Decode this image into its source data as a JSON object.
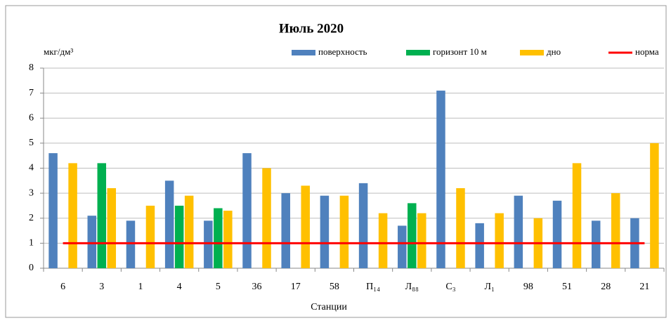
{
  "chart_data": {
    "type": "bar",
    "title": "Июль 2020",
    "y_label": "мкг/дм³",
    "x_label": "Станции",
    "categories": [
      "6",
      "3",
      "1",
      "4",
      "5",
      "36",
      "17",
      "58",
      "П₁₄",
      "Л₈₈",
      "С₃",
      "Л₁",
      "98",
      "51",
      "28",
      "21"
    ],
    "series": [
      {
        "name": "поверхность",
        "color": "#4f81bd",
        "type": "bar",
        "values": [
          4.6,
          2.1,
          1.9,
          3.5,
          1.9,
          4.6,
          3.0,
          2.9,
          3.4,
          1.7,
          7.1,
          1.8,
          2.9,
          2.7,
          1.9,
          2.0
        ]
      },
      {
        "name": "горизонт 10 м",
        "color": "#00b050",
        "type": "bar",
        "values": [
          null,
          4.2,
          null,
          2.5,
          2.4,
          null,
          null,
          null,
          null,
          2.6,
          null,
          null,
          null,
          null,
          null,
          null
        ]
      },
      {
        "name": "дно",
        "color": "#ffc000",
        "type": "bar",
        "values": [
          4.2,
          3.2,
          2.5,
          2.9,
          2.3,
          4.0,
          3.3,
          2.9,
          2.2,
          2.2,
          3.2,
          2.2,
          2.0,
          4.2,
          3.0,
          5.0
        ]
      },
      {
        "name": "норма",
        "color": "#ff0000",
        "type": "line",
        "values": [
          1,
          1,
          1,
          1,
          1,
          1,
          1,
          1,
          1,
          1,
          1,
          1,
          1,
          1,
          1,
          1
        ]
      }
    ],
    "ylim": [
      0,
      8
    ],
    "yticks": [
      0,
      1,
      2,
      3,
      4,
      5,
      6,
      7,
      8
    ],
    "grid": true,
    "legend": "top"
  }
}
